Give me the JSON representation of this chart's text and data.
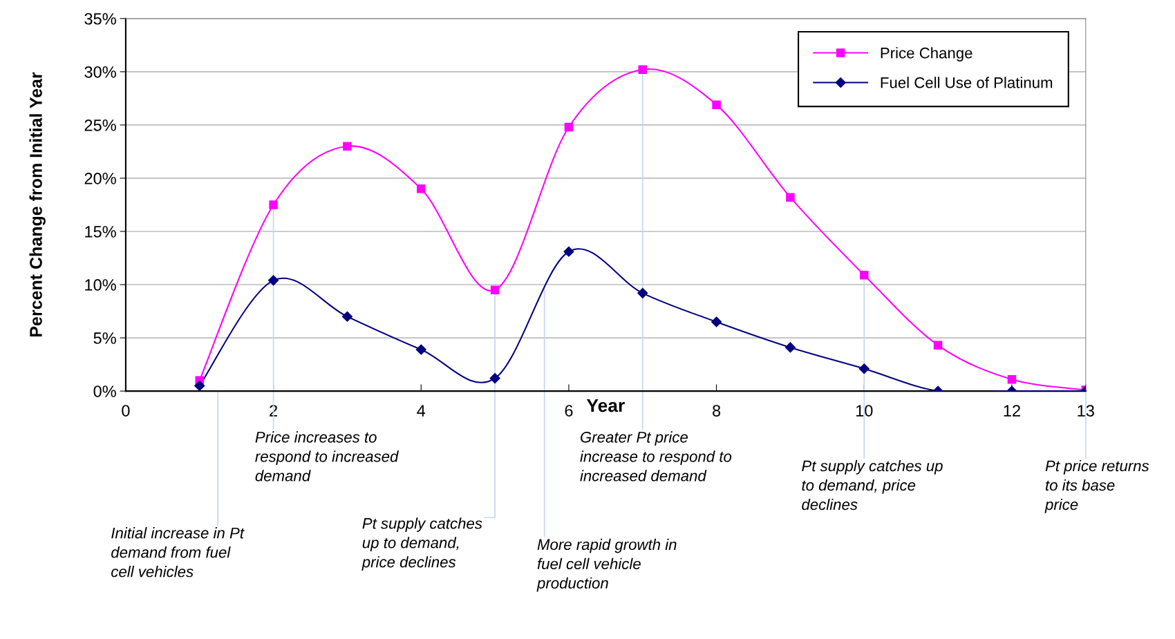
{
  "chart_data": {
    "type": "line",
    "xlabel": "Year",
    "ylabel": "Percent Change from Initial Year",
    "x": [
      1,
      2,
      3,
      4,
      5,
      6,
      7,
      8,
      9,
      10,
      11,
      12,
      13
    ],
    "series": [
      {
        "name": "Price Change",
        "color": "#ff00ff",
        "marker": "square",
        "values": [
          1,
          17.5,
          23,
          19,
          9.5,
          24.8,
          30.2,
          26.9,
          18.2,
          10.9,
          4.3,
          1.1,
          0.1
        ]
      },
      {
        "name": "Fuel Cell Use of Platinum",
        "color": "#000080",
        "marker": "diamond",
        "values": [
          0.5,
          10.4,
          7,
          3.9,
          1.2,
          13.1,
          9.2,
          6.5,
          4.1,
          2.1,
          0,
          0,
          0
        ]
      }
    ],
    "xlim": [
      0,
      13
    ],
    "xticks": [
      0,
      2,
      4,
      6,
      8,
      10,
      12,
      13
    ],
    "ylim": [
      0,
      35
    ],
    "yticks": [
      {
        "value": 0,
        "label": "0%"
      },
      {
        "value": 5,
        "label": "5%"
      },
      {
        "value": 10,
        "label": "10%"
      },
      {
        "value": 15,
        "label": "15%"
      },
      {
        "value": 20,
        "label": "20%"
      },
      {
        "value": 25,
        "label": "25%"
      },
      {
        "value": 30,
        "label": "30%"
      },
      {
        "value": 35,
        "label": "35%"
      }
    ],
    "grid": "y",
    "legend": "top right",
    "line_style": "solid",
    "annotations": [
      "Initial increase in Pt\ndemand from fuel\ncell vehicles",
      {
        "text": "Price increases to\nrespond to increased\ndemand",
        "x": 2,
        "y": 17.5
      },
      {
        "text": "Pt supply catches\nup to demand,\nprice declines",
        "x": 5,
        "y": 9.5
      },
      {
        "text": "More rapid growth in\nfuel cell vehicle\nproduction",
        "x": 5.67,
        "y": 10
      },
      {
        "text": "Greater Pt price\nincrease to respond to\nincreased demand",
        "x": 7,
        "y": 30.2
      },
      {
        "text": "Pt supply catches up\nto demand, price\ndeclines",
        "x": 10,
        "y": 10.9
      },
      {
        "text": "Pt price returns\nto its base\nprice",
        "x": 13,
        "y": 0.1
      }
    ]
  }
}
